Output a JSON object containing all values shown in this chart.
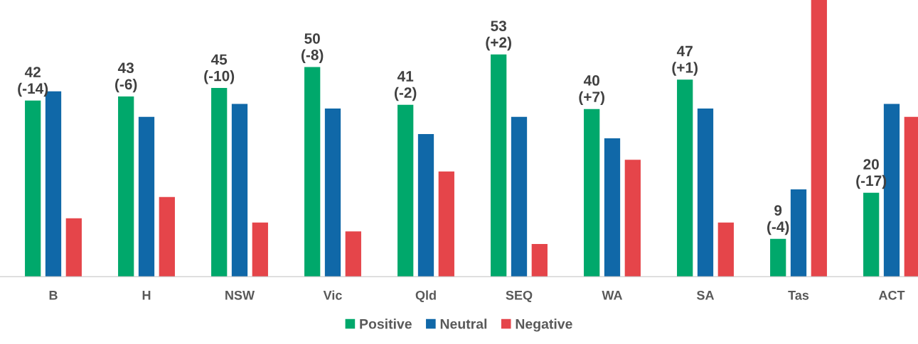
{
  "chart_data": {
    "type": "bar",
    "categories": [
      "B",
      "H",
      "NSW",
      "Vic",
      "Qld",
      "SEQ",
      "WA",
      "SA",
      "Tas",
      "ACT"
    ],
    "ylim": [
      0,
      66
    ],
    "grid": false,
    "legend": "bottom",
    "series": [
      {
        "name": "Positive",
        "color": "#00a86b",
        "values": [
          42,
          43,
          45,
          50,
          41,
          53,
          40,
          47,
          9,
          20
        ],
        "value_labels": [
          "42\n(-14)",
          "43\n(-6)",
          "45\n(-10)",
          "50\n(-8)",
          "41\n(-2)",
          "53\n(+2)",
          "40\n(+7)",
          "47\n(+1)",
          "9\n(-4)",
          "20\n(-17)"
        ]
      },
      {
        "name": "Neutral",
        "color": "#1068a8",
        "values": [
          44.2,
          38.1,
          41.2,
          40.1,
          34.0,
          38.1,
          33.0,
          40.1,
          20.8,
          41.2
        ]
      },
      {
        "name": "Negative",
        "color": "#e5454a",
        "values": [
          13.9,
          19.0,
          12.9,
          10.8,
          25.1,
          7.8,
          27.9,
          12.9,
          66,
          38.1
        ]
      }
    ]
  }
}
